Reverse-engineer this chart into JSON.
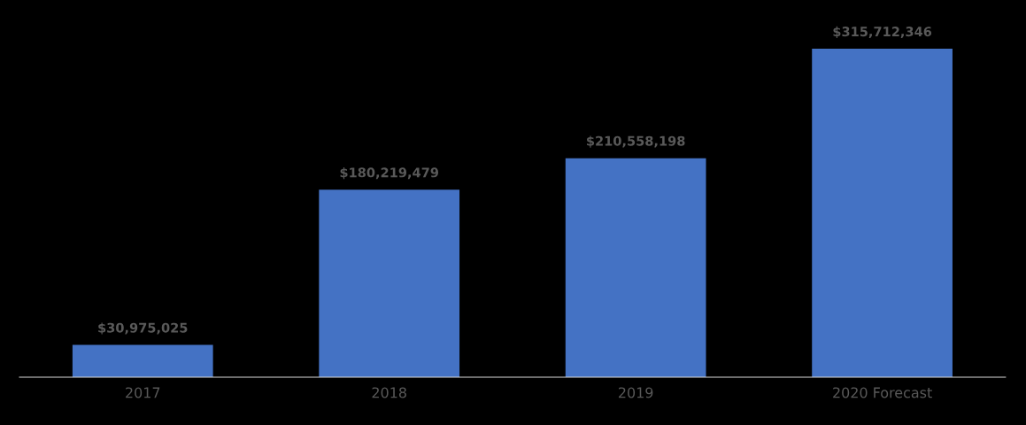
{
  "chart_data": {
    "type": "bar",
    "categories": [
      "2017",
      "2018",
      "2019",
      "2020 Forecast"
    ],
    "values": [
      30975025,
      180219479,
      210558198,
      315712346
    ],
    "value_labels": [
      "$30,975,025",
      "$180,219,479",
      "$210,558,198",
      "$315,712,346"
    ],
    "color": "#4472c4",
    "grid": false,
    "legend": false
  }
}
